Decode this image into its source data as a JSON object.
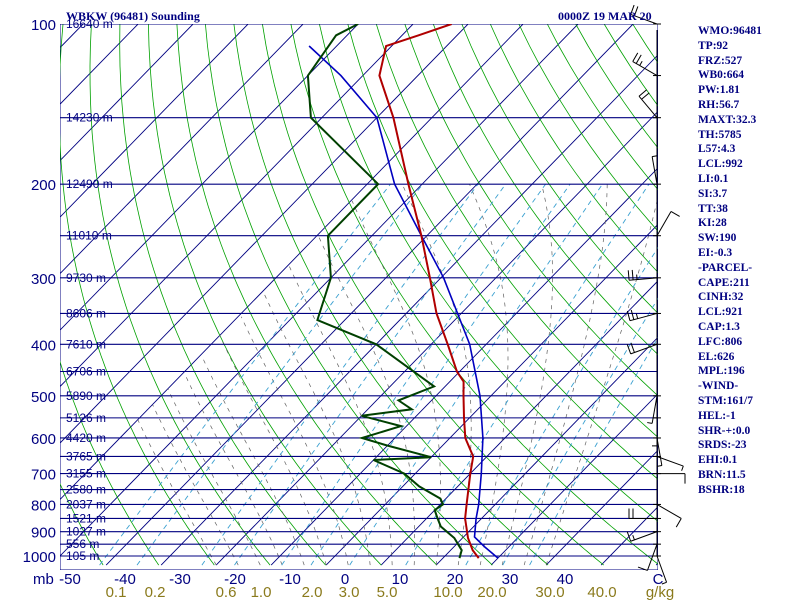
{
  "header": {
    "station": "WBKW (96481) Sounding",
    "time": "0000Z 19 MAR 20"
  },
  "indices": [
    "WMO:96481",
    "TP:92",
    "FRZ:527",
    "WB0:664",
    "PW:1.81",
    "RH:56.7",
    "MAXT:32.3",
    "TH:5785",
    "L57:4.3",
    "LCL:992",
    "LI:0.1",
    "SI:3.7",
    "TT:38",
    "KI:28",
    "SW:190",
    "EI:-0.3",
    "-PARCEL-",
    "CAPE:211",
    "CINH:32",
    "LCL:921",
    "CAP:1.3",
    "LFC:806",
    "EL:626",
    "MPL:196",
    "-WIND-",
    "STM:161/7",
    "HEL:-1",
    "SHR-+:0.0",
    "SRDS:-23",
    "EHI:0.1",
    "BRN:11.5",
    "BSHR:18"
  ],
  "colors": {
    "isobar": "#000080",
    "isotherm": "#000080",
    "dry_adiabat": "#00a000",
    "moist_adiabat": "#606060",
    "mixing_ratio": "#3aa0d0",
    "temperature": "#b00000",
    "dewpoint": "#004000",
    "parcel": "#0000c0",
    "text": "#000080",
    "mixing_label": "#8a7a1c"
  },
  "chart_data": {
    "type": "skew-t",
    "pressure_axis": [
      100,
      200,
      300,
      400,
      500,
      600,
      700,
      800,
      900,
      1000
    ],
    "temperature_axis": [
      -50,
      -40,
      -30,
      -20,
      -10,
      0,
      10,
      20,
      30,
      40
    ],
    "temperature_axis_unit": "mb",
    "temperature_axis_end": "C",
    "mixing_ratio_labels": [
      "0.1",
      "0.2",
      "0.6",
      "1.0",
      "2.0",
      "3.0",
      "5.0",
      "10.0",
      "20.0",
      "30.0",
      "40.0"
    ],
    "mixing_ratio_unit": "g/kg",
    "height_labels": [
      {
        "p": 100,
        "label": "16640 m"
      },
      {
        "p": 150,
        "label": "14230 m"
      },
      {
        "p": 200,
        "label": "12490 m"
      },
      {
        "p": 250,
        "label": "11010 m"
      },
      {
        "p": 300,
        "label": "9730 m"
      },
      {
        "p": 350,
        "label": "8606 m"
      },
      {
        "p": 400,
        "label": "7610 m"
      },
      {
        "p": 450,
        "label": "6706 m"
      },
      {
        "p": 500,
        "label": "5890 m"
      },
      {
        "p": 550,
        "label": "5126 m"
      },
      {
        "p": 600,
        "label": "4420 m"
      },
      {
        "p": 650,
        "label": "3765 m"
      },
      {
        "p": 700,
        "label": "3155 m"
      },
      {
        "p": 750,
        "label": "2580 m"
      },
      {
        "p": 800,
        "label": "2037 m"
      },
      {
        "p": 850,
        "label": "1521 m"
      },
      {
        "p": 900,
        "label": "1027 m"
      },
      {
        "p": 950,
        "label": "556 m"
      },
      {
        "p": 1000,
        "label": "105 m"
      }
    ],
    "temperature_profile": [
      {
        "p": 1009,
        "t": 26.5
      },
      {
        "p": 975,
        "t": 24.0
      },
      {
        "p": 925,
        "t": 21.0
      },
      {
        "p": 850,
        "t": 17.0
      },
      {
        "p": 800,
        "t": 14.8
      },
      {
        "p": 700,
        "t": 10.0
      },
      {
        "p": 650,
        "t": 7.5
      },
      {
        "p": 600,
        "t": 2.8
      },
      {
        "p": 550,
        "t": -1.0
      },
      {
        "p": 500,
        "t": -5.0
      },
      {
        "p": 470,
        "t": -7.5
      },
      {
        "p": 450,
        "t": -10.5
      },
      {
        "p": 400,
        "t": -17.0
      },
      {
        "p": 350,
        "t": -24.5
      },
      {
        "p": 300,
        "t": -32.0
      },
      {
        "p": 250,
        "t": -41.0
      },
      {
        "p": 200,
        "t": -52.5
      },
      {
        "p": 150,
        "t": -67.0
      },
      {
        "p": 125,
        "t": -77.0
      },
      {
        "p": 110,
        "t": -81.0
      },
      {
        "p": 105,
        "t": -77.0
      },
      {
        "p": 100,
        "t": -73.0
      }
    ],
    "dewpoint_profile": [
      {
        "p": 1009,
        "t": 23.0
      },
      {
        "p": 975,
        "t": 22.0
      },
      {
        "p": 925,
        "t": 18.5
      },
      {
        "p": 880,
        "t": 14.0
      },
      {
        "p": 850,
        "t": 12.0
      },
      {
        "p": 820,
        "t": 10.0
      },
      {
        "p": 800,
        "t": 10.5
      },
      {
        "p": 780,
        "t": 9.0
      },
      {
        "p": 740,
        "t": 3.0
      },
      {
        "p": 700,
        "t": -2.0
      },
      {
        "p": 660,
        "t": -10.0
      },
      {
        "p": 652,
        "t": 0.0
      },
      {
        "p": 620,
        "t": -10.0
      },
      {
        "p": 600,
        "t": -16.0
      },
      {
        "p": 570,
        "t": -11.0
      },
      {
        "p": 545,
        "t": -20.0
      },
      {
        "p": 530,
        "t": -12.0
      },
      {
        "p": 510,
        "t": -16.0
      },
      {
        "p": 480,
        "t": -12.0
      },
      {
        "p": 400,
        "t": -30.0
      },
      {
        "p": 360,
        "t": -45.0
      },
      {
        "p": 300,
        "t": -50.0
      },
      {
        "p": 250,
        "t": -58.0
      },
      {
        "p": 200,
        "t": -58.0
      },
      {
        "p": 150,
        "t": -82.0
      },
      {
        "p": 125,
        "t": -90.0
      },
      {
        "p": 105,
        "t": -92.0
      },
      {
        "p": 100,
        "t": -90.0
      }
    ],
    "parcel_profile": [
      {
        "p": 1009,
        "t": 30.0
      },
      {
        "p": 960,
        "t": 25.5
      },
      {
        "p": 921,
        "t": 22.0
      },
      {
        "p": 850,
        "t": 19.0
      },
      {
        "p": 800,
        "t": 17.0
      },
      {
        "p": 700,
        "t": 12.0
      },
      {
        "p": 600,
        "t": 6.0
      },
      {
        "p": 500,
        "t": -2.0
      },
      {
        "p": 400,
        "t": -13.0
      },
      {
        "p": 300,
        "t": -29.5
      },
      {
        "p": 250,
        "t": -41.0
      },
      {
        "p": 200,
        "t": -55.0
      },
      {
        "p": 150,
        "t": -70.0
      },
      {
        "p": 125,
        "t": -84.0
      },
      {
        "p": 110,
        "t": -95.0
      }
    ],
    "wind_profile": [
      {
        "p": 1000,
        "dir": 160,
        "spd": 5
      },
      {
        "p": 950,
        "dir": 200,
        "spd": 10
      },
      {
        "p": 900,
        "dir": 250,
        "spd": 15
      },
      {
        "p": 850,
        "dir": 270,
        "spd": 20
      },
      {
        "p": 800,
        "dir": 120,
        "spd": 10
      },
      {
        "p": 700,
        "dir": 90,
        "spd": 10
      },
      {
        "p": 650,
        "dir": 110,
        "spd": 5
      },
      {
        "p": 600,
        "dir": 170,
        "spd": 5
      },
      {
        "p": 550,
        "dir": 180,
        "spd": 5
      },
      {
        "p": 500,
        "dir": 190,
        "spd": 5
      },
      {
        "p": 400,
        "dir": 250,
        "spd": 20
      },
      {
        "p": 350,
        "dir": 255,
        "spd": 25
      },
      {
        "p": 300,
        "dir": 265,
        "spd": 25
      },
      {
        "p": 250,
        "dir": 30,
        "spd": 10
      },
      {
        "p": 200,
        "dir": 350,
        "spd": 5
      },
      {
        "p": 150,
        "dir": 320,
        "spd": 20
      },
      {
        "p": 125,
        "dir": 300,
        "spd": 25
      },
      {
        "p": 100,
        "dir": 290,
        "spd": 20
      }
    ],
    "grid": true
  }
}
